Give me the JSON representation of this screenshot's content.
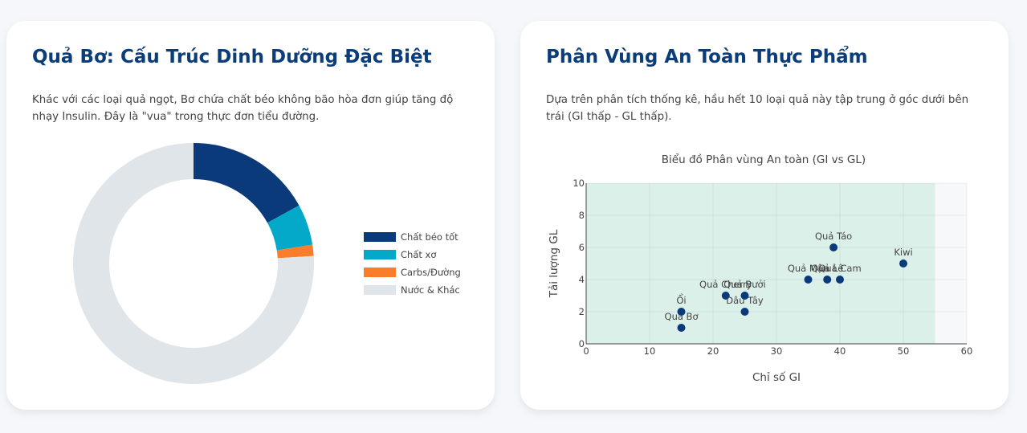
{
  "cards": [
    {
      "title": "Quả Bơ: Cấu Trúc Dinh Dưỡng Đặc Biệt",
      "description": "Khác với các loại quả ngọt, Bơ chứa chất béo không bão hòa đơn giúp tăng độ nhạy Insulin. Đây là \"vua\" trong thực đơn tiểu đường."
    },
    {
      "title": "Phân Vùng An Toàn Thực Phẩm",
      "description": "Dựa trên phân tích thống kê, hầu hết 10 loại quả này tập trung ở góc dưới bên trái (GI thấp - GL thấp)."
    }
  ],
  "chart_data": [
    {
      "type": "donut",
      "categories": [
        "Chất béo tốt",
        "Chất xơ",
        "Carbs/Đường",
        "Nước & Khác"
      ],
      "values": [
        17,
        5.5,
        1.5,
        76
      ],
      "colors": [
        "#0a3a7a",
        "#04a9c9",
        "#f97d2b",
        "#e0e5ea"
      ],
      "legend": "right"
    },
    {
      "type": "scatter",
      "title": "Biểu đồ Phân vùng An toàn (GI vs GL)",
      "x_label": "Chỉ số GI",
      "y_label": "Tải lượng GL",
      "labels": [
        "Quả Bơ",
        "Ổi",
        "Quả Cherry",
        "Quả Bưởi",
        "Dâu Tây",
        "Quả Mận",
        "Quả Lê",
        "Quả Cam",
        "Quả Táo",
        "Kiwi"
      ],
      "x": [
        15,
        15,
        22,
        25,
        25,
        35,
        38,
        40,
        39,
        50
      ],
      "values": [
        1,
        2,
        3,
        3,
        2,
        4,
        4,
        4,
        6,
        5
      ],
      "color": "#0a3a7a",
      "safe_zone": {
        "x": [
          0,
          55
        ],
        "y": [
          0,
          10
        ],
        "color": "#dcf0ea"
      },
      "xlim": [
        0,
        60
      ],
      "ylim": [
        0,
        10
      ],
      "xticks": [
        0,
        10,
        20,
        30,
        40,
        50,
        60
      ],
      "yticks": [
        0,
        2,
        4,
        6,
        8,
        10
      ],
      "grid": true
    }
  ]
}
